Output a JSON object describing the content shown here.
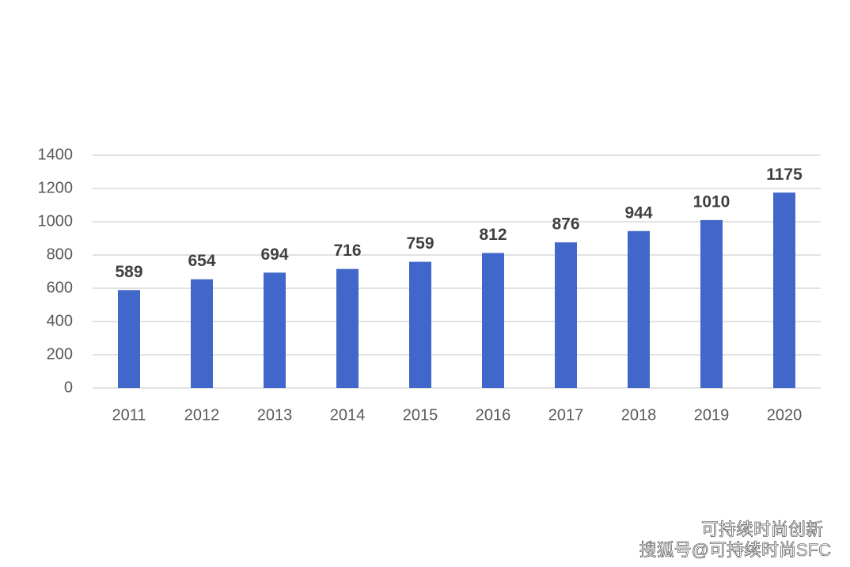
{
  "chart_data": {
    "type": "bar",
    "categories": [
      "2011",
      "2012",
      "2013",
      "2014",
      "2015",
      "2016",
      "2017",
      "2018",
      "2019",
      "2020"
    ],
    "values": [
      589,
      654,
      694,
      716,
      759,
      812,
      876,
      944,
      1010,
      1175
    ],
    "color": "#4067c9",
    "ylim": [
      0,
      1400
    ],
    "yticks": [
      0,
      200,
      400,
      600,
      800,
      1000,
      1200,
      1400
    ],
    "grid": true
  },
  "watermark": [
    "可持续时尚创新",
    "搜狐号@可持续时尚SFC"
  ]
}
